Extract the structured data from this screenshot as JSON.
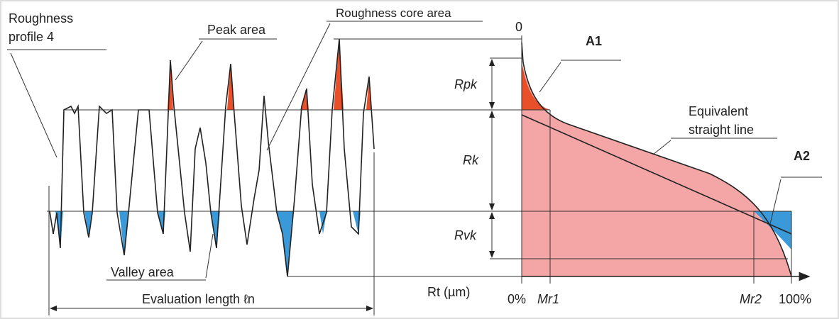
{
  "labels": {
    "roughness_profile": [
      "Roughness",
      "profile 4"
    ],
    "peak_area": "Peak area",
    "core_area": "Roughness core area",
    "valley_area": "Valley area",
    "evaluation_length": "Evaluation length ℓn",
    "zero": "0",
    "a1": "A1",
    "a2": "A2",
    "rpk": "Rpk",
    "rk": "Rk",
    "rvk": "Rvk",
    "equivalent_line": [
      "Equivalent",
      "straight line"
    ],
    "rt": "Rt (µm)",
    "pct0": "0%",
    "mr1": "Mr1",
    "mr2": "Mr2",
    "pct100": "100%"
  }
}
